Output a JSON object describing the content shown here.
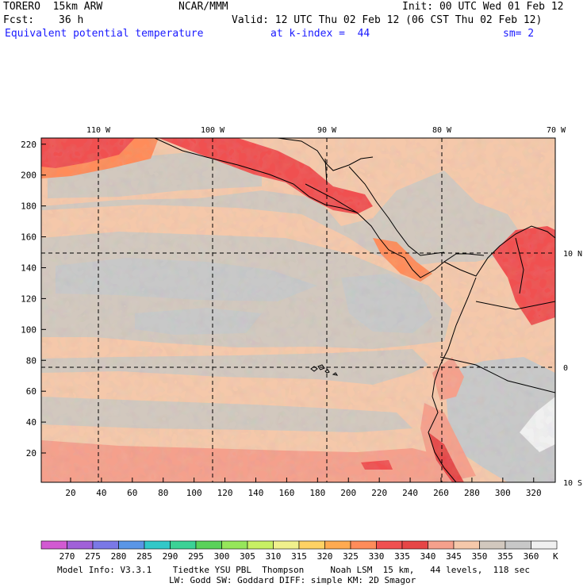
{
  "header": {
    "model": "TORERO  15km ARW",
    "center": "NCAR/MMM",
    "init": "Init: 00 UTC Wed 01 Feb 12",
    "fcst_label": "Fcst:",
    "fcst_value": "36 h",
    "valid": "Valid: 12 UTC Thu 02 Feb 12 (06 CST Thu 02 Feb 12)",
    "field": "Equivalent potential temperature",
    "level": "at k-index =  44",
    "smoothing": "sm= 2"
  },
  "map": {
    "lon_labels": [
      "110 W",
      "100 W",
      "90 W",
      "80 W",
      "70 W"
    ],
    "lat_labels": [
      "10 N",
      "0",
      "10 S"
    ],
    "grid_y_ticks": [
      "220",
      "200",
      "180",
      "160",
      "140",
      "120",
      "100",
      "80",
      "60",
      "40",
      "20"
    ],
    "grid_x_ticks": [
      "20",
      "40",
      "60",
      "80",
      "100",
      "120",
      "140",
      "160",
      "180",
      "200",
      "220",
      "240",
      "260",
      "280",
      "300",
      "320"
    ]
  },
  "colorbar": {
    "labels": [
      "270",
      "275",
      "280",
      "285",
      "290",
      "295",
      "300",
      "305",
      "310",
      "315",
      "320",
      "325",
      "330",
      "335",
      "340",
      "345",
      "350",
      "355",
      "360"
    ],
    "unit": "K",
    "colors": [
      "#d25ad2",
      "#a060d8",
      "#7a78e6",
      "#5a96e6",
      "#32c8c8",
      "#3cd296",
      "#5ad25a",
      "#96e65a",
      "#c8f064",
      "#f0f08c",
      "#ffd264",
      "#ffaa50",
      "#ff8c5a",
      "#f05050",
      "#e64646",
      "#f5a08c",
      "#f5c8aa",
      "#d2c8be",
      "#c8c8c8",
      "#f0f0f0"
    ]
  },
  "footer": {
    "line1": "Model Info: V3.3.1    Tiedtke YSU PBL  Thompson     Noah LSM  15 km,   44 levels,  118 sec",
    "line2": "LW: Godd SW: Goddard DIFF: simple KM: 2D Smagor"
  },
  "chart_data": {
    "type": "heatmap",
    "title": "Equivalent potential temperature",
    "units": "K",
    "x_range": [
      1,
      334
    ],
    "y_range": [
      1,
      224
    ],
    "contour_levels": [
      270,
      275,
      280,
      285,
      290,
      295,
      300,
      305,
      310,
      315,
      320,
      325,
      330,
      335,
      340,
      345,
      350,
      355,
      360
    ]
  }
}
